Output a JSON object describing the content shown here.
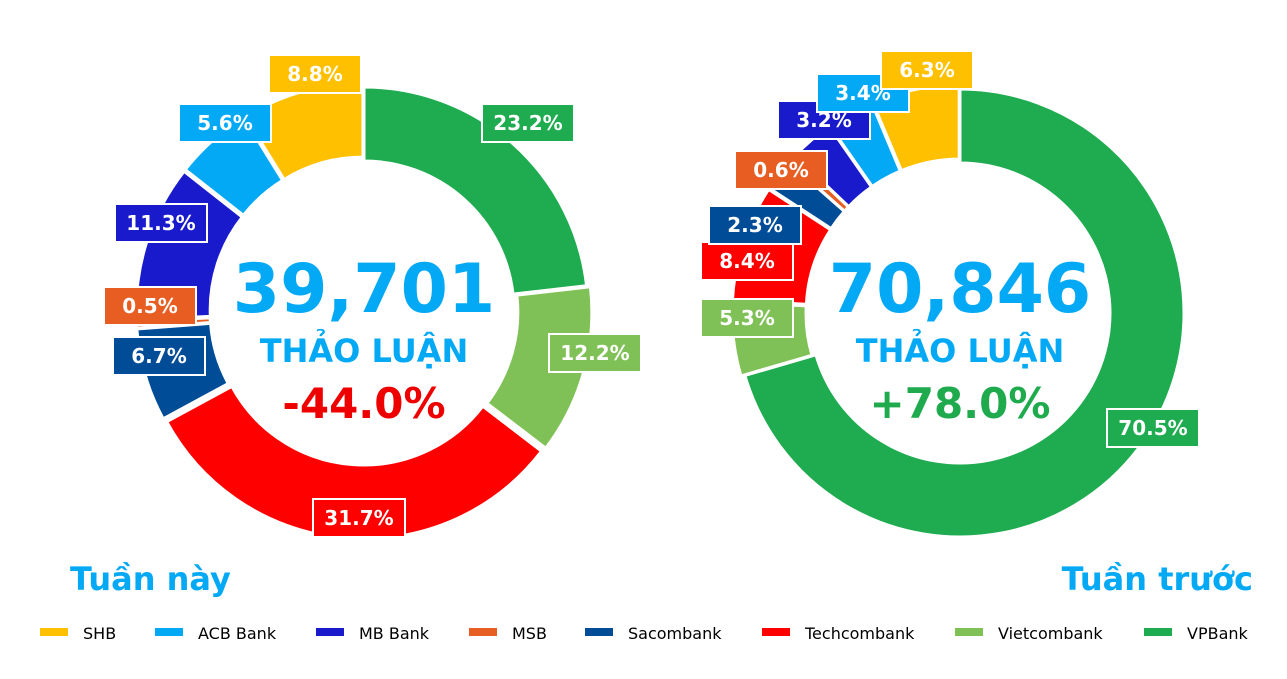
{
  "colors": {
    "accent": "#03a9f4",
    "negative": "#ee0000",
    "positive": "#1faa4e"
  },
  "legend": [
    {
      "name": "SHB",
      "color": "#ffc000"
    },
    {
      "name": "ACB Bank",
      "color": "#03a9f4"
    },
    {
      "name": "MB Bank",
      "color": "#1a1acd"
    },
    {
      "name": "MSB",
      "color": "#e85e22"
    },
    {
      "name": "Sacombank",
      "color": "#004c97"
    },
    {
      "name": "Techcombank",
      "color": "#fe0000"
    },
    {
      "name": "Vietcombank",
      "color": "#80c157"
    },
    {
      "name": "VPBank",
      "color": "#1fab4f"
    }
  ],
  "chart_data": [
    {
      "type": "pie",
      "style": "donut",
      "caption": "Tuần này",
      "center": {
        "value": "39,701",
        "label": "THẢO LUẬN",
        "delta": "-44.0%",
        "delta_color": "#ee0000"
      },
      "slices": [
        {
          "name": "VPBank",
          "value": 23.2,
          "label": "23.2%"
        },
        {
          "name": "Vietcombank",
          "value": 12.2,
          "label": "12.2%"
        },
        {
          "name": "Techcombank",
          "value": 31.7,
          "label": "31.7%"
        },
        {
          "name": "Sacombank",
          "value": 6.7,
          "label": "6.7%"
        },
        {
          "name": "MSB",
          "value": 0.5,
          "label": "0.5%"
        },
        {
          "name": "MB Bank",
          "value": 11.3,
          "label": "11.3%"
        },
        {
          "name": "ACB Bank",
          "value": 5.6,
          "label": "5.6%"
        },
        {
          "name": "SHB",
          "value": 8.8,
          "label": "8.8%"
        }
      ]
    },
    {
      "type": "pie",
      "style": "donut",
      "caption": "Tuần trước",
      "center": {
        "value": "70,846",
        "label": "THẢO LUẬN",
        "delta": "+78.0%",
        "delta_color": "#1faa4e"
      },
      "slices": [
        {
          "name": "VPBank",
          "value": 70.5,
          "label": "70.5%"
        },
        {
          "name": "Vietcombank",
          "value": 5.3,
          "label": "5.3%"
        },
        {
          "name": "Techcombank",
          "value": 8.4,
          "label": "8.4%"
        },
        {
          "name": "Sacombank",
          "value": 2.3,
          "label": "2.3%"
        },
        {
          "name": "MSB",
          "value": 0.6,
          "label": "0.6%"
        },
        {
          "name": "MB Bank",
          "value": 3.2,
          "label": "3.2%"
        },
        {
          "name": "ACB Bank",
          "value": 3.4,
          "label": "3.4%"
        },
        {
          "name": "SHB",
          "value": 6.3,
          "label": "6.3%"
        }
      ]
    }
  ]
}
